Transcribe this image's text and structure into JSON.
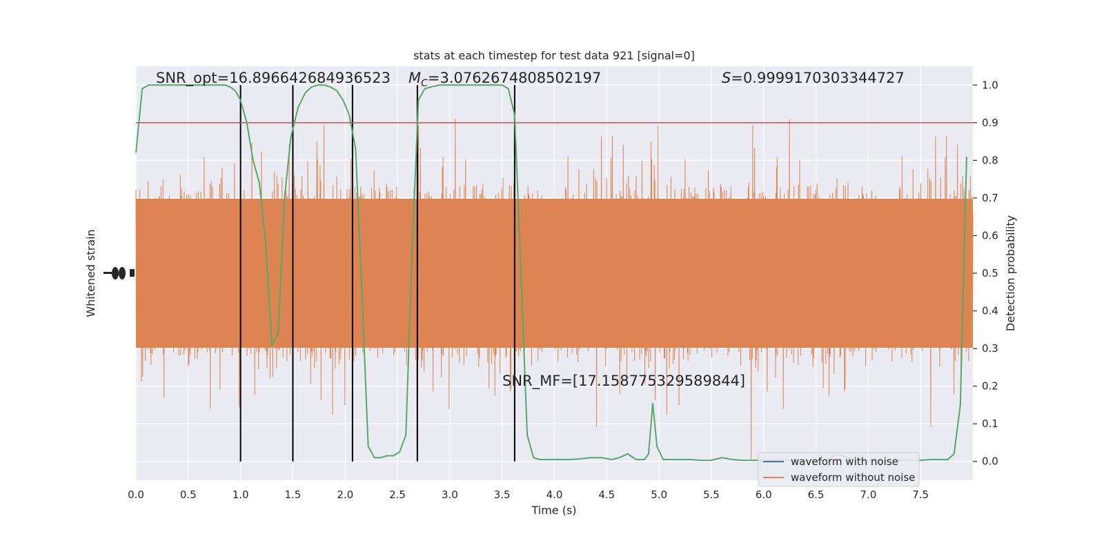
{
  "chart_data": {
    "type": "line",
    "title": "stats at each timestep for test data 921 [signal=0]",
    "xlabel": "Time (s)",
    "ylabel_left": "Whitened strain",
    "ylabel_right": "Detection probability",
    "xlim": [
      0.0,
      8.0
    ],
    "ylim_right": [
      -0.05,
      1.05
    ],
    "x_ticks": [
      "0.0",
      "0.5",
      "1.0",
      "1.5",
      "2.0",
      "2.5",
      "3.0",
      "3.5",
      "4.0",
      "4.5",
      "5.0",
      "5.5",
      "6.0",
      "6.5",
      "7.0",
      "7.5"
    ],
    "y_right_ticks": [
      "0.0",
      "0.1",
      "0.2",
      "0.3",
      "0.4",
      "0.5",
      "0.6",
      "0.7",
      "0.8",
      "0.9",
      "1.0"
    ],
    "grid": true,
    "annotations": {
      "snr_opt": "SNR_opt=16.896642684936523",
      "mc_symbol": "M",
      "mc_sub": "C",
      "mc_value": "=3.0762674808502197",
      "s_symbol": "S",
      "s_value": "=0.9999170303344727",
      "snr_mf": "SNR_MF=[17.158775329589844]"
    },
    "threshold": 0.9,
    "vertical_lines_x": [
      1.0,
      1.5,
      2.07,
      2.69,
      3.62
    ],
    "series": [
      {
        "name": "waveform with noise",
        "color": "#4c72b0"
      },
      {
        "name": "waveform without noise",
        "color": "#dd8452"
      },
      {
        "color": "#55a868",
        "x": [
          0.0,
          0.06,
          0.12,
          0.2,
          0.3,
          0.4,
          0.5,
          0.6,
          0.7,
          0.8,
          0.85,
          0.9,
          0.95,
          1.0,
          1.06,
          1.12,
          1.18,
          1.24,
          1.3,
          1.36,
          1.42,
          1.48,
          1.55,
          1.62,
          1.68,
          1.74,
          1.8,
          1.86,
          1.92,
          1.98,
          2.04,
          2.1,
          2.16,
          2.22,
          2.28,
          2.34,
          2.4,
          2.46,
          2.52,
          2.58,
          2.64,
          2.7,
          2.76,
          2.82,
          2.9,
          3.0,
          3.1,
          3.2,
          3.3,
          3.4,
          3.5,
          3.56,
          3.62,
          3.68,
          3.74,
          3.8,
          3.86,
          3.95,
          4.05,
          4.15,
          4.25,
          4.35,
          4.45,
          4.55,
          4.62,
          4.7,
          4.78,
          4.86,
          4.9,
          4.94,
          4.98,
          5.04,
          5.12,
          5.2,
          5.3,
          5.4,
          5.5,
          5.6,
          5.7,
          5.8,
          5.9,
          6.0,
          6.2,
          6.4,
          6.6,
          6.7,
          6.8,
          6.9,
          7.0,
          7.1,
          7.2,
          7.3,
          7.4,
          7.5,
          7.6,
          7.7,
          7.76,
          7.82,
          7.88,
          7.94
        ],
        "y": [
          0.82,
          0.99,
          1.0,
          1.0,
          1.0,
          1.0,
          1.0,
          1.0,
          1.0,
          1.0,
          1.0,
          0.995,
          0.985,
          0.96,
          0.9,
          0.8,
          0.74,
          0.58,
          0.31,
          0.34,
          0.7,
          0.86,
          0.94,
          0.98,
          0.995,
          1.0,
          1.0,
          0.995,
          0.985,
          0.96,
          0.92,
          0.83,
          0.45,
          0.04,
          0.01,
          0.01,
          0.015,
          0.015,
          0.025,
          0.07,
          0.56,
          0.96,
          0.99,
          0.995,
          1.0,
          1.0,
          1.0,
          1.0,
          1.0,
          1.0,
          1.0,
          0.99,
          0.92,
          0.5,
          0.07,
          0.01,
          0.005,
          0.005,
          0.005,
          0.005,
          0.007,
          0.01,
          0.01,
          0.005,
          0.01,
          0.02,
          0.005,
          0.005,
          0.02,
          0.155,
          0.04,
          0.005,
          0.005,
          0.005,
          0.005,
          0.003,
          0.003,
          0.01,
          0.005,
          0.003,
          0.003,
          0.003,
          0.003,
          0.003,
          0.003,
          0.02,
          0.01,
          0.003,
          0.003,
          0.003,
          0.003,
          0.003,
          0.003,
          0.003,
          0.005,
          0.005,
          0.005,
          0.02,
          0.15,
          0.81
        ]
      }
    ],
    "legend_position": "lower right"
  }
}
